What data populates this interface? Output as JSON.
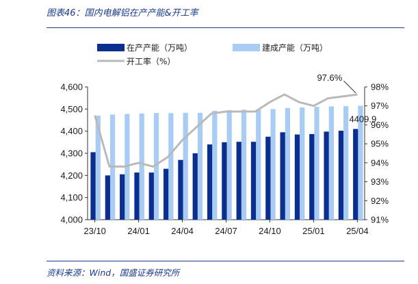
{
  "figure": {
    "title": "图表46：国内电解铝在产产能&开工率",
    "source": "资料来源：Wind，国盛证券研究所"
  },
  "colors": {
    "capacity_running": "#0b2f8f",
    "capacity_built": "#a9ccf5",
    "utilization": "#b9b9b9",
    "rule": "#1f3b8f",
    "title_text": "#1a3a8c"
  },
  "chart_data": {
    "type": "bar",
    "x_tick_labels": [
      "23/10",
      "24/01",
      "24/04",
      "24/07",
      "24/10",
      "25/01",
      "25/04"
    ],
    "categories": [
      "23/10",
      "23/11",
      "23/12",
      "24/01",
      "24/02",
      "24/03",
      "24/04",
      "24/05",
      "24/06",
      "24/07",
      "24/08",
      "24/09",
      "24/10",
      "24/11",
      "24/12",
      "25/01",
      "25/02",
      "25/03",
      "25/04"
    ],
    "series": [
      {
        "name": "在产产能（万吨）",
        "kind": "bar",
        "axis": "left",
        "values": [
          4305,
          4200,
          4205,
          4213,
          4213,
          4230,
          4270,
          4300,
          4340,
          4350,
          4352,
          4352,
          4375,
          4395,
          4385,
          4387,
          4398,
          4402,
          4409.9
        ]
      },
      {
        "name": "建成产能（万吨）",
        "kind": "bar",
        "axis": "left",
        "values": [
          4470,
          4475,
          4478,
          4480,
          4482,
          4482,
          4483,
          4483,
          4492,
          4495,
          4497,
          4497,
          4500,
          4505,
          4507,
          4510,
          4512,
          4513,
          4515
        ]
      },
      {
        "name": "开工率（%）",
        "kind": "line",
        "axis": "right",
        "values": [
          96.5,
          93.8,
          93.8,
          94.0,
          93.8,
          94.3,
          95.2,
          95.9,
          96.6,
          96.7,
          96.7,
          96.7,
          97.2,
          97.6,
          97.2,
          97.0,
          97.4,
          97.5,
          97.6
        ]
      }
    ],
    "y_left": {
      "lim": [
        4000,
        4600
      ],
      "ticks": [
        "4,000",
        "4,100",
        "4,200",
        "4,300",
        "4,400",
        "4,500",
        "4,600"
      ]
    },
    "y_right": {
      "lim": [
        91,
        98
      ],
      "ticks": [
        "91%",
        "92%",
        "93%",
        "94%",
        "95%",
        "96%",
        "97%",
        "98%"
      ]
    },
    "annotations": [
      {
        "text": "97.6%",
        "series": "开工率（%）",
        "index": 18
      },
      {
        "text": "4409.9",
        "series": "在产产能（万吨）",
        "index": 18
      }
    ],
    "legend_position": "top",
    "grid": false
  }
}
